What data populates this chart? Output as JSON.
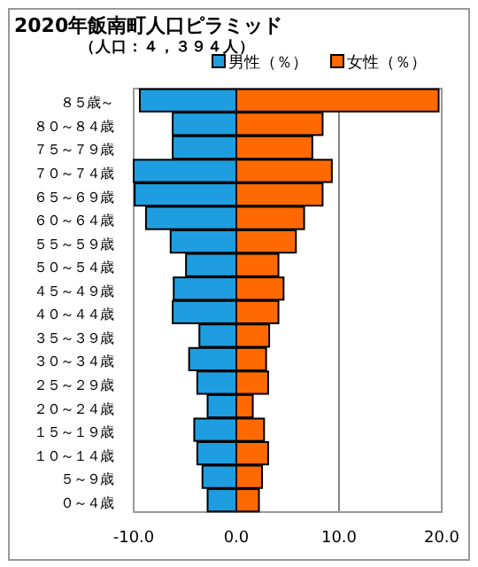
{
  "chart_data": {
    "type": "bar",
    "orientation": "horizontal",
    "stacked": true,
    "title": "2020年飯南町人口ピラミッド",
    "subtitle": "（人口：４，３９４人）",
    "categories": [
      "８５歳～",
      "８０～８４歳",
      "７５～７９歳",
      "７０～７４歳",
      "６５～６９歳",
      "６０～６４歳",
      "５５～５９歳",
      "５０～５４歳",
      "４５～４９歳",
      "４０～４４歳",
      "３５～３９歳",
      "３０～３４歳",
      "２５～２９歳",
      "２０～２４歳",
      "１５～１９歳",
      "１０～１４歳",
      "５～９歳",
      "０～４歳"
    ],
    "series": [
      {
        "name": "男性（％）",
        "color": "#1e9ee0",
        "values": [
          -9.4,
          -6.2,
          -6.2,
          -10.0,
          -9.9,
          -8.8,
          -6.4,
          -4.9,
          -6.1,
          -6.2,
          -3.6,
          -4.6,
          -3.8,
          -2.8,
          -4.1,
          -3.8,
          -3.3,
          -2.8
        ]
      },
      {
        "name": "女性（％）",
        "color": "#ff6a00",
        "values": [
          19.7,
          8.4,
          7.4,
          9.3,
          8.4,
          6.6,
          5.8,
          4.1,
          4.6,
          4.1,
          3.2,
          2.9,
          3.1,
          1.6,
          2.7,
          3.1,
          2.5,
          2.2
        ]
      }
    ],
    "xlim": [
      -10,
      20
    ],
    "xticks": [
      {
        "value": -10,
        "label": "-10.0"
      },
      {
        "value": 0,
        "label": "0.0"
      },
      {
        "value": 10,
        "label": "10.0"
      },
      {
        "value": 20,
        "label": "20.0"
      }
    ],
    "grid": "x",
    "legend": "top right"
  }
}
